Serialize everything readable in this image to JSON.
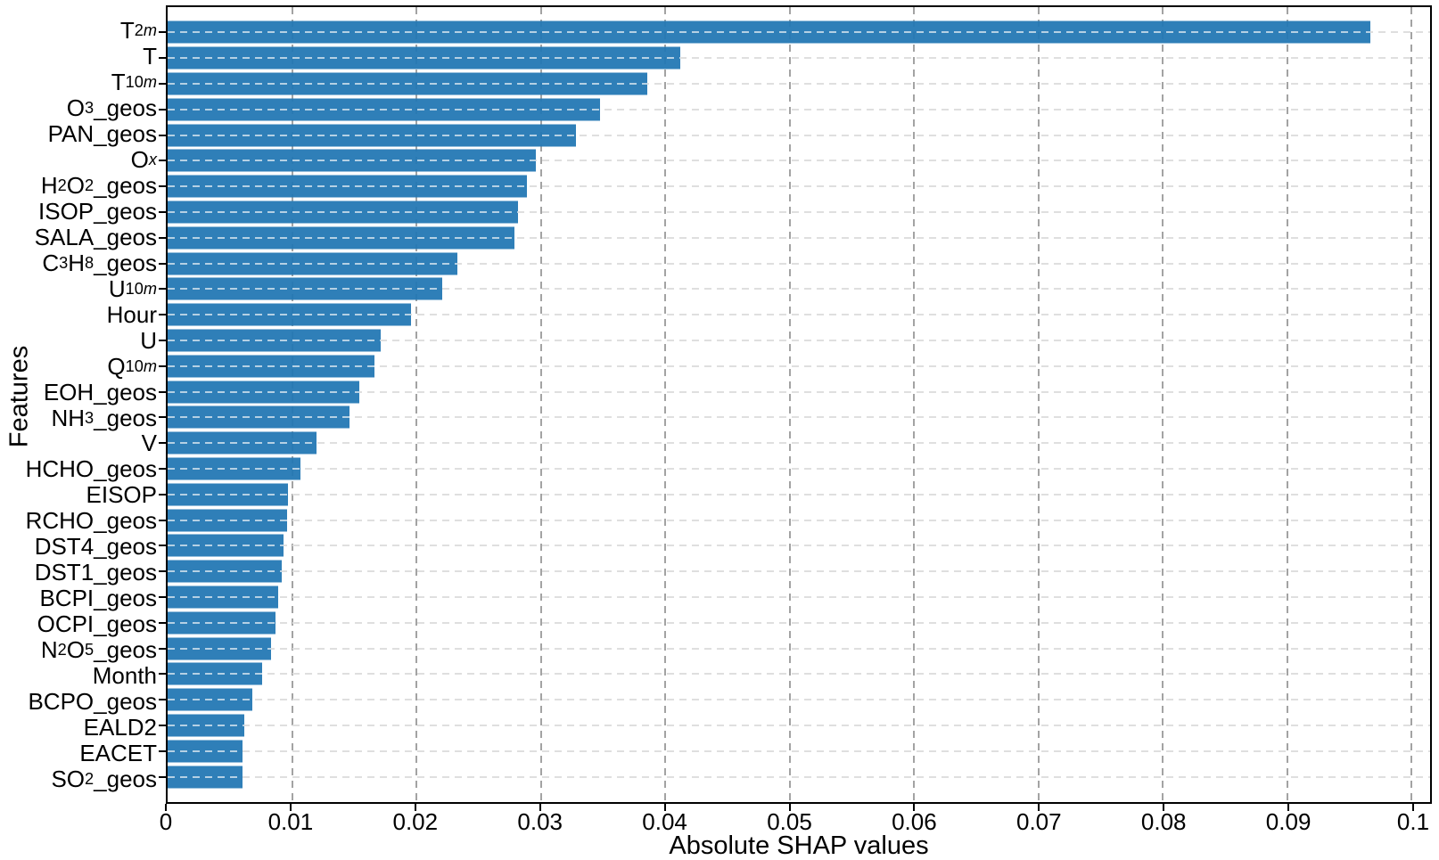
{
  "chart_data": {
    "type": "bar",
    "orientation": "horizontal",
    "title": "",
    "xlabel": "Absolute SHAP values",
    "ylabel": "Features",
    "xlim": [
      0,
      0.1015
    ],
    "xticks": [
      0,
      0.01,
      0.02,
      0.03,
      0.04,
      0.05,
      0.06,
      0.07,
      0.08,
      0.09,
      0.1
    ],
    "xtick_labels": [
      "0",
      "0.01",
      "0.02",
      "0.03",
      "0.04",
      "0.05",
      "0.06",
      "0.07",
      "0.08",
      "0.09",
      "0.1"
    ],
    "grid": "dashed gridlines on both axes",
    "legend": "none",
    "bar_color": "#2478b4",
    "categories": [
      "T_{2m}",
      "T",
      "T_{10m}",
      "O_{3}_geos",
      "PAN_geos",
      "O_{x}",
      "H_{2}O_{2}_geos",
      "ISOP_geos",
      "SALA_geos",
      "C_{3}H_{8}_geos",
      "U_{10m}",
      "Hour",
      "U",
      "Q_{10m}",
      "EOH_geos",
      "NH_{3}_geos",
      "V",
      "HCHO_geos",
      "EISOP",
      "RCHO_geos",
      "DST4_geos",
      "DST1_geos",
      "BCPI_geos",
      "OCPI_geos",
      "N_{2}O_{5}_geos",
      "Month",
      "BCPO_geos",
      "EALD2",
      "EACET",
      "SO_{2}_geos"
    ],
    "values": [
      0.0967,
      0.0412,
      0.0386,
      0.0348,
      0.0328,
      0.0296,
      0.0289,
      0.0282,
      0.0279,
      0.0233,
      0.0221,
      0.0196,
      0.0171,
      0.0166,
      0.0154,
      0.0146,
      0.012,
      0.0107,
      0.0097,
      0.0096,
      0.0093,
      0.0092,
      0.0089,
      0.0087,
      0.0083,
      0.0076,
      0.0068,
      0.0062,
      0.006,
      0.006
    ]
  }
}
